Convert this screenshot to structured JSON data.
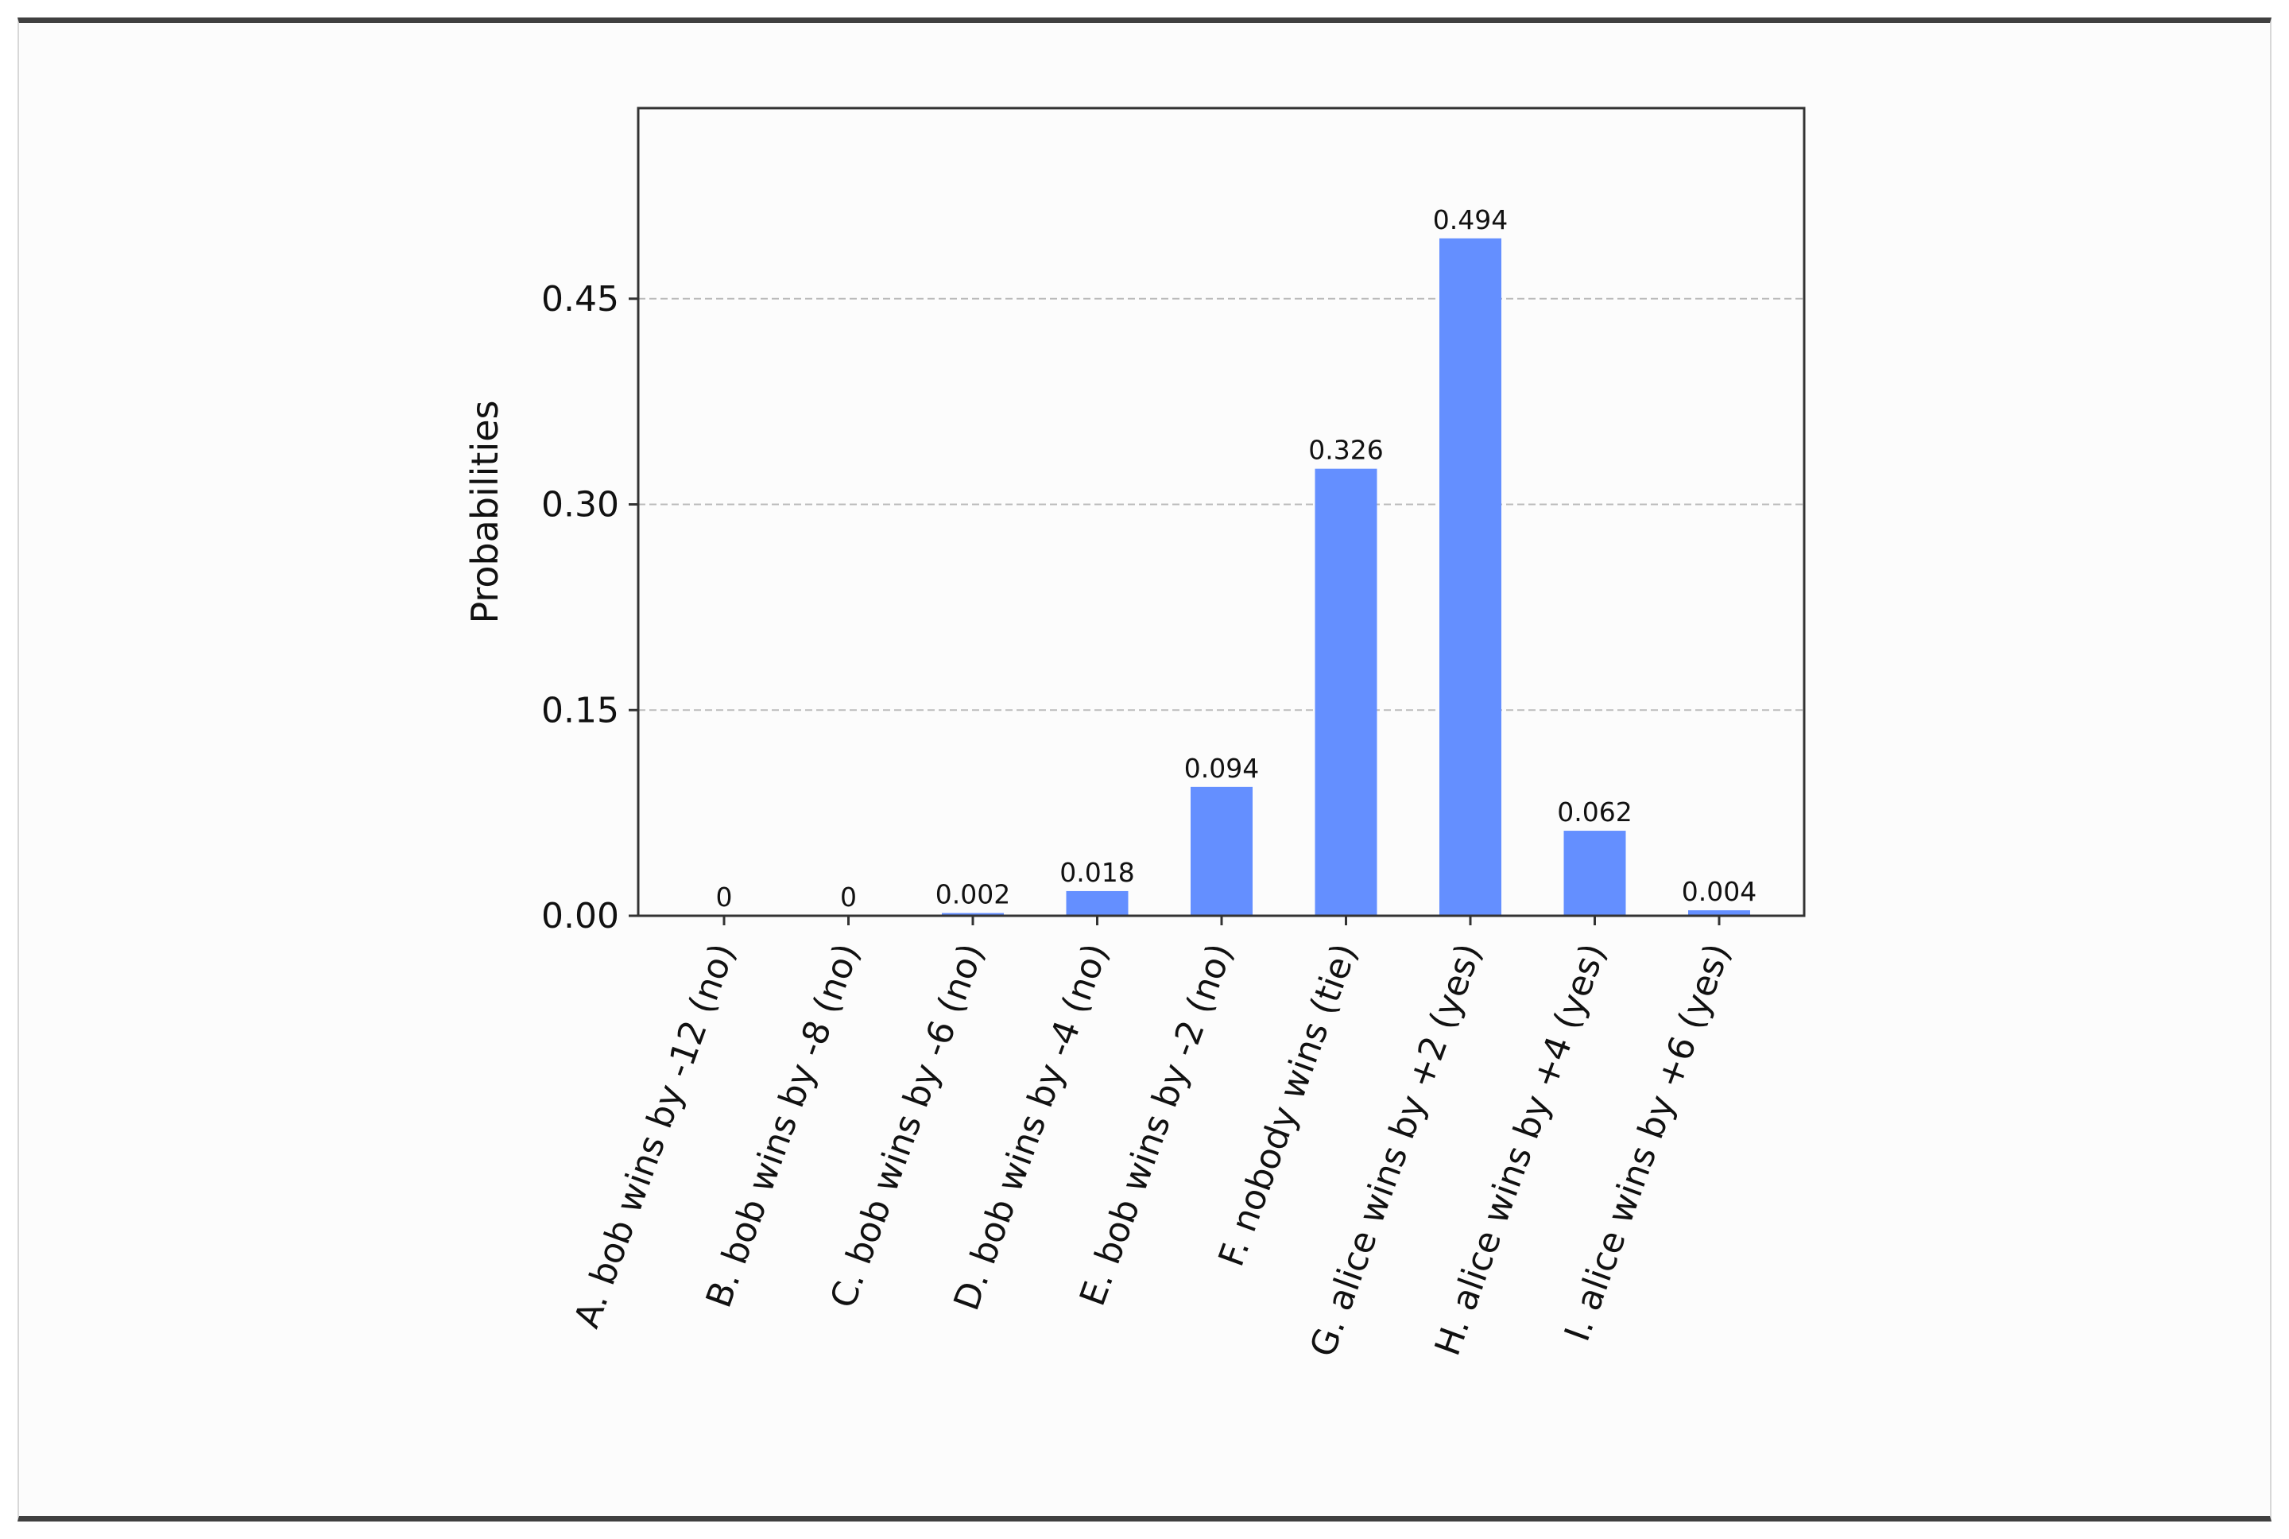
{
  "chart_data": {
    "type": "bar",
    "title": "",
    "xlabel": "",
    "ylabel": "Probabilities",
    "categories": [
      "A. bob wins by -12 (no)",
      "B. bob wins by -8 (no)",
      "C. bob wins by -6 (no)",
      "D. bob wins by -4 (no)",
      "E. bob wins by -2 (no)",
      "F. nobody wins (tie)",
      "G. alice wins by +2 (yes)",
      "H. alice wins by +4 (yes)",
      "I. alice wins by +6 (yes)"
    ],
    "values": [
      0,
      0,
      0.002,
      0.018,
      0.094,
      0.326,
      0.494,
      0.062,
      0.004
    ],
    "data_labels": [
      "0",
      "0",
      "0.002",
      "0.018",
      "0.094",
      "0.326",
      "0.494",
      "0.062",
      "0.004"
    ],
    "ylim": [
      0,
      0.589
    ],
    "yticks": [
      0,
      0.15,
      0.3,
      0.45
    ],
    "ytick_labels": [
      "0.00",
      "0.15",
      "0.30",
      "0.45"
    ],
    "grid": "horizontal dashed",
    "bar_color": "#648fff",
    "grid_color": "#bbbbbb",
    "axes_color": "#333333"
  }
}
